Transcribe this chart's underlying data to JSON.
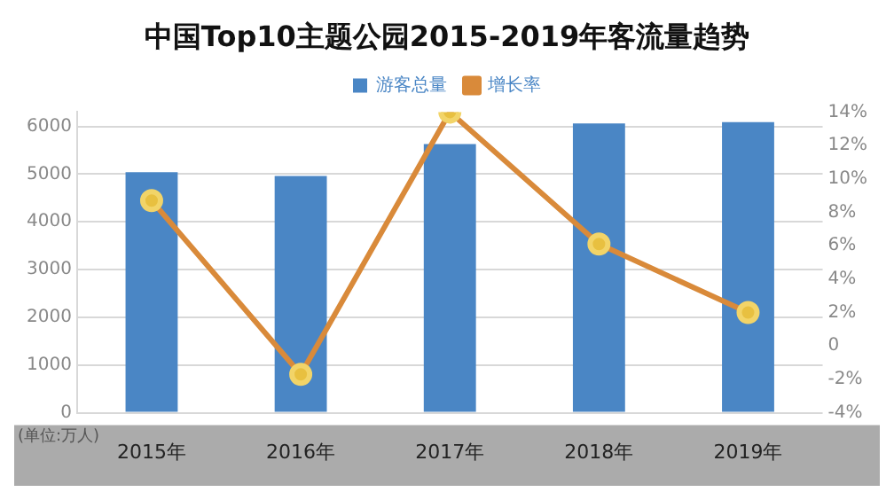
{
  "chart_data": {
    "type": "bar",
    "title": "中国Top10主题公园2015-2019年客流量趋势",
    "categories": [
      "2015年",
      "2016年",
      "2017年",
      "2018年",
      "2019年"
    ],
    "series": [
      {
        "name": "游客总量",
        "color": "#4a86c5",
        "values": [
          5040,
          4960,
          5630,
          6060,
          6090
        ]
      },
      {
        "name": "增长率",
        "type": "line",
        "axis": "y2",
        "color": "#d98a3a",
        "values": [
          8.7,
          -1.7,
          14,
          6.1,
          2
        ]
      }
    ],
    "ylim": [
      0,
      6300
    ],
    "yticks": [
      0,
      1000,
      2000,
      3000,
      4000,
      5000,
      6000
    ],
    "y2lim": [
      -4,
      14
    ],
    "y2ticks": [
      {
        "value": -4,
        "label": "-4%"
      },
      {
        "value": -2,
        "label": "-2%"
      },
      0,
      {
        "value": 2,
        "label": "2%"
      },
      {
        "value": 4,
        "label": "4%"
      },
      {
        "value": 6,
        "label": "6%"
      },
      {
        "value": 8,
        "label": "8%"
      },
      {
        "value": 10,
        "label": "10%"
      },
      {
        "value": 12,
        "label": "12%"
      },
      {
        "value": 14,
        "label": "14%"
      }
    ],
    "grid": "y",
    "legend": "top",
    "marker": "circle",
    "annotations": [
      "(单位:万人)"
    ]
  }
}
